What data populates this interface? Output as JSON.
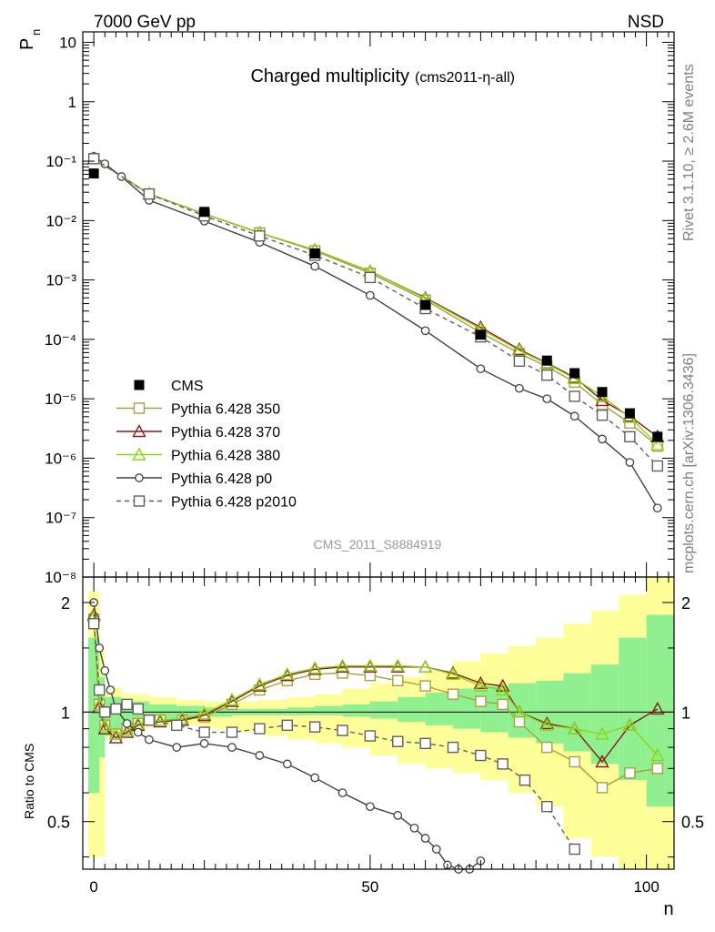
{
  "header": {
    "left": "7000 GeV pp",
    "right": "NSD"
  },
  "side_labels": {
    "rivet": "Rivet 3.1.10, ≥ 2.6M events",
    "mcplots": "mcplots.cern.ch [arXiv:1306.3436]"
  },
  "analysis_id": "CMS_2011_S8884919",
  "chart_data": [
    {
      "panel": "main",
      "type": "scatter",
      "title": "Charged multiplicity",
      "title_suffix": "(cms2011-η-all)",
      "ylabel": "P",
      "ylabel_sub": "n",
      "xlabel": "",
      "log_y": true,
      "xlim": [
        -2,
        105
      ],
      "ylim": [
        1e-08,
        15
      ],
      "y_ticks": [
        "10⁻⁸",
        "10⁻⁷",
        "10⁻⁶",
        "10⁻⁵",
        "10⁻⁴",
        "10⁻³",
        "10⁻²",
        "10⁻¹",
        "1",
        "10"
      ],
      "legend_position": "bottom-left",
      "series": [
        {
          "name": "CMS",
          "color": "#000000",
          "marker": "filled-square",
          "line": "none",
          "x": [
            0,
            20,
            40,
            60,
            70,
            82,
            87,
            92,
            97,
            102
          ],
          "y": [
            0.062,
            0.014,
            0.0028,
            0.00038,
            0.00012,
            4.4e-05,
            2.7e-05,
            1.3e-05,
            5.7e-06,
            2.3e-06
          ]
        },
        {
          "name": "Pythia 6.428 350",
          "color": "#a8a040",
          "marker": "open-square",
          "line": "solid",
          "x": [
            0,
            10,
            20,
            30,
            40,
            50,
            60,
            70,
            77,
            82,
            87,
            92,
            97,
            102
          ],
          "y": [
            0.11,
            0.028,
            0.013,
            0.0062,
            0.0031,
            0.0013,
            0.00046,
            0.00013,
            5.8e-05,
            3.5e-05,
            1.9e-05,
            8e-06,
            3.9e-06,
            1.6e-06
          ]
        },
        {
          "name": "Pythia 6.428 370",
          "color": "#8b1a1a",
          "marker": "open-triangle",
          "line": "solid",
          "x": [
            0,
            10,
            20,
            30,
            40,
            50,
            60,
            70,
            77,
            82,
            87,
            92,
            97,
            102
          ],
          "y": [
            0.11,
            0.028,
            0.013,
            0.0062,
            0.0032,
            0.0014,
            0.0005,
            0.00016,
            6.8e-05,
            4e-05,
            2.3e-05,
            9.4e-06,
            5.1e-06,
            2.3e-06
          ]
        },
        {
          "name": "Pythia 6.428 380",
          "color": "#8cd414",
          "marker": "open-triangle",
          "line": "solid",
          "x": [
            0,
            10,
            20,
            30,
            40,
            50,
            60,
            70,
            77,
            82,
            87,
            92,
            97,
            102
          ],
          "y": [
            0.11,
            0.028,
            0.013,
            0.0062,
            0.0032,
            0.0014,
            0.00049,
            0.00015,
            6.5e-05,
            3.9e-05,
            2.2e-05,
            1.1e-05,
            4.9e-06,
            1.7e-06
          ]
        },
        {
          "name": "Pythia 6.428 p0",
          "color": "#404040",
          "marker": "open-circle",
          "line": "solid",
          "x": [
            0,
            2,
            5,
            10,
            20,
            30,
            40,
            50,
            60,
            70,
            77,
            82,
            87,
            92,
            97,
            102
          ],
          "y": [
            0.12,
            0.09,
            0.055,
            0.022,
            0.0098,
            0.0043,
            0.0017,
            0.00055,
            0.00014,
            3.2e-05,
            1.5e-05,
            1e-05,
            5.1e-06,
            2.1e-06,
            8.5e-07,
            1.45e-07
          ]
        },
        {
          "name": "Pythia 6.428 p2010",
          "color": "#606060",
          "marker": "open-square",
          "line": "dashed",
          "x": [
            0,
            10,
            20,
            30,
            40,
            50,
            60,
            70,
            77,
            82,
            87,
            92,
            97,
            102
          ],
          "y": [
            0.11,
            0.028,
            0.012,
            0.0055,
            0.0026,
            0.0011,
            0.00033,
            0.00011,
            4.3e-05,
            2.5e-05,
            1.1e-05,
            5.3e-06,
            2.3e-06,
            7.4e-07
          ]
        }
      ]
    },
    {
      "panel": "ratio",
      "type": "line",
      "ylabel": "Ratio to CMS",
      "xlabel": "n",
      "xlim": [
        -2,
        105
      ],
      "ylim": [
        0.37,
        2.35
      ],
      "x_ticks": [
        "0",
        "50",
        "100"
      ],
      "y_ticks": [
        "0.5",
        "1",
        "2"
      ],
      "reference": 1,
      "bands": {
        "x_edges": [
          -1,
          1,
          2,
          5,
          10,
          15,
          20,
          25,
          30,
          35,
          40,
          45,
          50,
          55,
          60,
          65,
          70,
          75,
          80,
          85,
          90,
          95,
          100,
          105
        ],
        "stat_color": "#90f090",
        "stat_low": [
          0.6,
          0.75,
          0.86,
          0.92,
          0.95,
          0.96,
          0.97,
          0.98,
          0.98,
          0.98,
          0.98,
          0.97,
          0.96,
          0.94,
          0.92,
          0.9,
          0.88,
          0.85,
          0.82,
          0.78,
          0.72,
          0.65,
          0.55
        ],
        "stat_high": [
          1.6,
          1.25,
          1.1,
          1.07,
          1.05,
          1.04,
          1.03,
          1.02,
          1.02,
          1.03,
          1.04,
          1.05,
          1.07,
          1.1,
          1.13,
          1.16,
          1.18,
          1.2,
          1.22,
          1.28,
          1.35,
          1.6,
          1.85
        ],
        "syst_color": "#ffff99",
        "syst_low": [
          0.4,
          0.4,
          0.85,
          0.9,
          0.92,
          0.92,
          0.9,
          0.88,
          0.86,
          0.84,
          0.82,
          0.8,
          0.76,
          0.72,
          0.7,
          0.68,
          0.65,
          0.6,
          0.55,
          0.45,
          0.4,
          0.35,
          0.3
        ],
        "syst_high": [
          2.15,
          1.5,
          1.17,
          1.12,
          1.1,
          1.08,
          1.07,
          1.07,
          1.08,
          1.1,
          1.12,
          1.16,
          1.2,
          1.25,
          1.3,
          1.38,
          1.45,
          1.52,
          1.6,
          1.75,
          1.9,
          2.1,
          2.5
        ]
      },
      "series": [
        {
          "name": "Pythia 6.428 350",
          "color": "#a8a040",
          "marker": "open-square",
          "line": "solid",
          "x": [
            0,
            1,
            2,
            4,
            6,
            8,
            12,
            16,
            20,
            25,
            30,
            35,
            40,
            45,
            50,
            55,
            60,
            65,
            70,
            74,
            77,
            82,
            87,
            92,
            97,
            102
          ],
          "y": [
            1.8,
            1.05,
            0.92,
            0.87,
            0.9,
            0.93,
            0.95,
            0.95,
            0.97,
            1.05,
            1.15,
            1.22,
            1.27,
            1.28,
            1.26,
            1.22,
            1.18,
            1.12,
            1.07,
            1.05,
            0.94,
            0.8,
            0.73,
            0.62,
            0.68,
            0.7
          ]
        },
        {
          "name": "Pythia 6.428 370",
          "color": "#8b1a1a",
          "marker": "open-triangle",
          "line": "solid",
          "x": [
            0,
            1,
            2,
            4,
            6,
            8,
            12,
            16,
            20,
            25,
            30,
            35,
            40,
            45,
            50,
            55,
            60,
            65,
            70,
            74,
            77,
            82,
            87,
            92,
            97,
            102
          ],
          "y": [
            1.85,
            1.03,
            0.9,
            0.85,
            0.88,
            0.92,
            0.94,
            0.95,
            0.98,
            1.07,
            1.18,
            1.26,
            1.31,
            1.33,
            1.33,
            1.33,
            1.33,
            1.28,
            1.2,
            1.18,
            1.0,
            0.93,
            0.9,
            0.73,
            0.92,
            1.02
          ]
        },
        {
          "name": "Pythia 6.428 380",
          "color": "#8cd414",
          "marker": "open-triangle",
          "line": "solid",
          "x": [
            0,
            1,
            2,
            4,
            6,
            8,
            12,
            16,
            20,
            25,
            30,
            35,
            40,
            45,
            50,
            55,
            60,
            65,
            70,
            74,
            77,
            82,
            87,
            92,
            97,
            102
          ],
          "y": [
            1.83,
            1.05,
            0.92,
            0.87,
            0.89,
            0.93,
            0.95,
            0.96,
            0.99,
            1.08,
            1.19,
            1.27,
            1.32,
            1.34,
            1.34,
            1.34,
            1.33,
            1.27,
            1.18,
            1.15,
            1.0,
            0.92,
            0.9,
            0.87,
            0.92,
            0.76
          ]
        },
        {
          "name": "Pythia 6.428 p0",
          "color": "#404040",
          "marker": "open-circle",
          "line": "solid",
          "x": [
            0,
            1,
            2,
            3,
            4,
            6,
            8,
            10,
            15,
            20,
            25,
            30,
            35,
            40,
            45,
            50,
            55,
            58,
            60,
            62,
            64,
            66,
            68,
            70
          ],
          "y": [
            2.0,
            1.5,
            1.3,
            1.15,
            1.02,
            0.93,
            0.88,
            0.84,
            0.8,
            0.82,
            0.8,
            0.76,
            0.72,
            0.66,
            0.6,
            0.55,
            0.52,
            0.48,
            0.45,
            0.42,
            0.38,
            0.37,
            0.37,
            0.39
          ]
        },
        {
          "name": "Pythia 6.428 p2010",
          "color": "#606060",
          "marker": "open-square",
          "line": "dashed",
          "x": [
            0,
            1,
            2,
            4,
            6,
            8,
            10,
            15,
            20,
            25,
            30,
            35,
            40,
            45,
            50,
            55,
            60,
            65,
            70,
            74,
            78,
            82,
            87,
            92
          ],
          "y": [
            1.75,
            1.15,
            1.0,
            1.02,
            1.05,
            1.02,
            0.95,
            0.92,
            0.88,
            0.88,
            0.9,
            0.92,
            0.91,
            0.89,
            0.86,
            0.83,
            0.82,
            0.8,
            0.76,
            0.72,
            0.65,
            0.55,
            0.42,
            0.36
          ]
        }
      ]
    }
  ]
}
